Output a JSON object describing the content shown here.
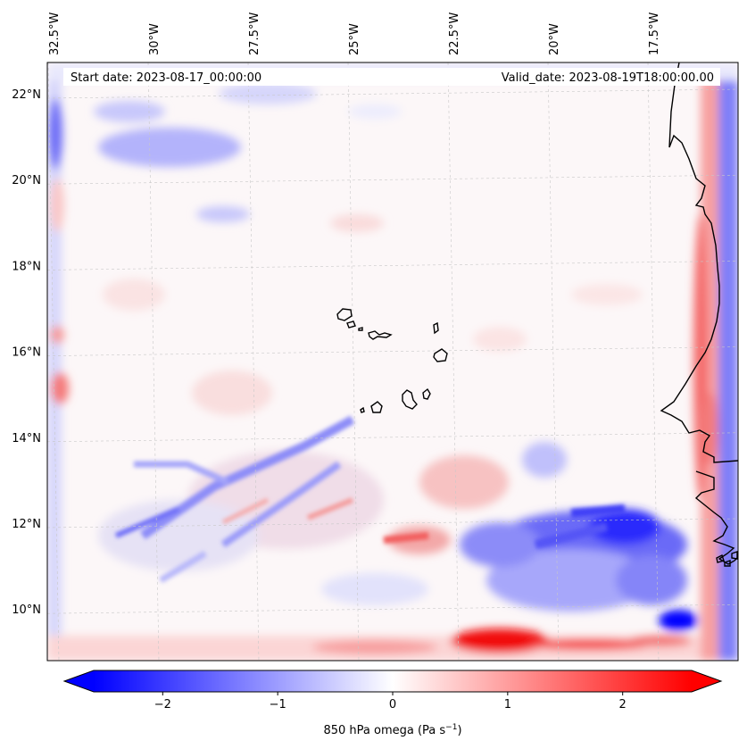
{
  "header": {
    "start_label": "Start date: 2023-08-17_00:00:00",
    "valid_label": "Valid_date: 2023-08-19T18:00:00.00"
  },
  "map": {
    "lon_ticks": [
      {
        "value": -32.5,
        "label": "32.5°W"
      },
      {
        "value": -30.0,
        "label": "30°W"
      },
      {
        "value": -27.5,
        "label": "27.5°W"
      },
      {
        "value": -25.0,
        "label": "25°W"
      },
      {
        "value": -22.5,
        "label": "22.5°W"
      },
      {
        "value": -20.0,
        "label": "20°W"
      },
      {
        "value": -17.5,
        "label": "17.5°W"
      }
    ],
    "lat_ticks": [
      {
        "value": 22,
        "label": "22°N"
      },
      {
        "value": 20,
        "label": "20°N"
      },
      {
        "value": 18,
        "label": "18°N"
      },
      {
        "value": 16,
        "label": "16°N"
      },
      {
        "value": 14,
        "label": "14°N"
      },
      {
        "value": 12,
        "label": "12°N"
      },
      {
        "value": 10,
        "label": "10°N"
      }
    ],
    "colormap": "bwr",
    "colors": {
      "negative": "#0000ff",
      "zero": "#ffffff",
      "positive": "#ff0000",
      "coastline": "#000000",
      "gridline": "#c8c8c8"
    }
  },
  "colorbar": {
    "label_prefix": "850 hPa omega (Pa s",
    "label_exp": "−1",
    "label_suffix": ")",
    "range": [
      -2.6,
      2.6
    ],
    "ticks": [
      {
        "value": -2,
        "label": "−2"
      },
      {
        "value": -1,
        "label": "−1"
      },
      {
        "value": 0,
        "label": "0"
      },
      {
        "value": 1,
        "label": "1"
      },
      {
        "value": 2,
        "label": "2"
      }
    ],
    "extend": "both"
  }
}
